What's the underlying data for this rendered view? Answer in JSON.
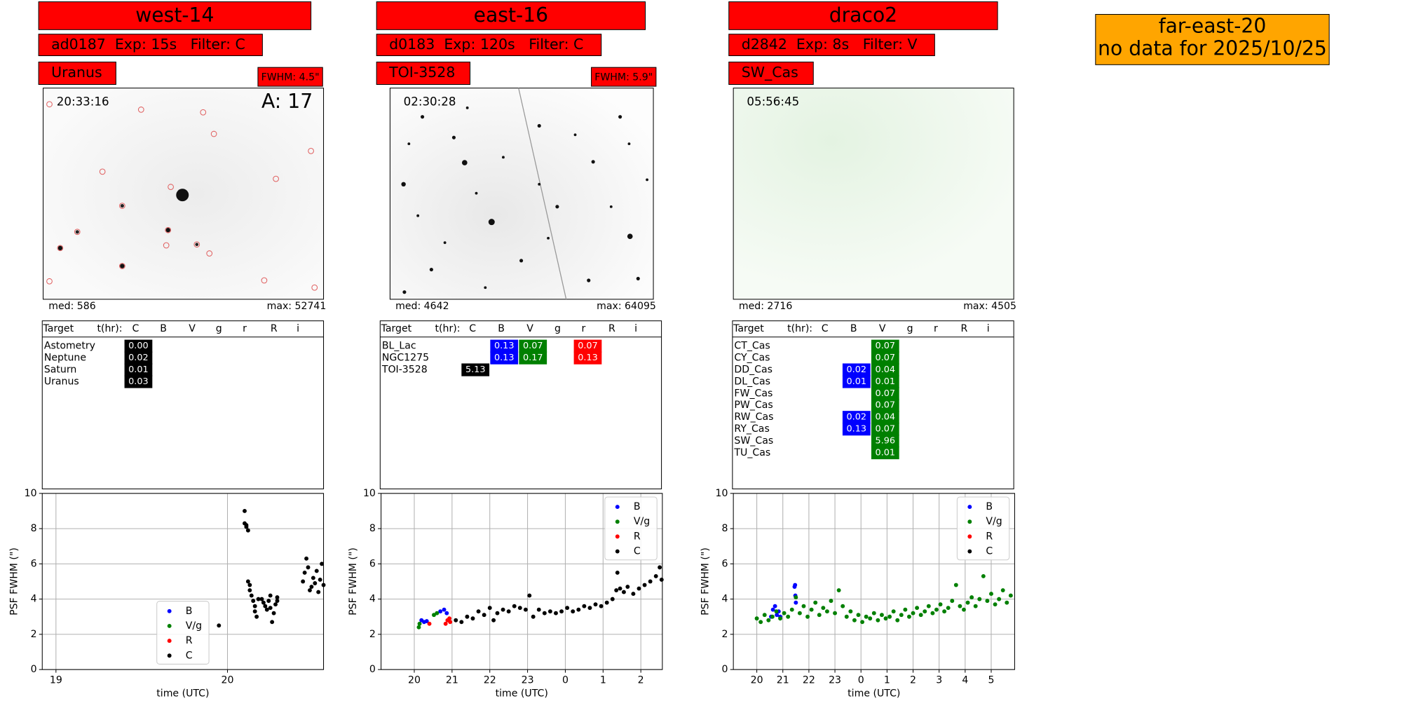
{
  "panels": [
    {
      "name": "west-14",
      "info": "ad0187  Exp: 15s   Filter: C",
      "target": "Uranus",
      "fwhm": "FWHM: 4.5\"",
      "image": {
        "time": "20:33:16",
        "annotation": "A: 17",
        "median": "med: 586",
        "max": "max: 52741"
      },
      "table": {
        "header": [
          "Target",
          "t(hr):",
          "C",
          "B",
          "V",
          "g",
          "r",
          "R",
          "i"
        ],
        "rows": [
          {
            "target": "Astometry",
            "cells": [
              {
                "filter": "C",
                "value": "0.00",
                "color": "#000000"
              }
            ]
          },
          {
            "target": "Neptune",
            "cells": [
              {
                "filter": "C",
                "value": "0.02",
                "color": "#000000"
              }
            ]
          },
          {
            "target": "Saturn",
            "cells": [
              {
                "filter": "C",
                "value": "0.01",
                "color": "#000000"
              }
            ]
          },
          {
            "target": "Uranus",
            "cells": [
              {
                "filter": "C",
                "value": "0.03",
                "color": "#000000"
              }
            ]
          }
        ]
      }
    },
    {
      "name": "east-16",
      "info": "d0183  Exp: 120s   Filter: C",
      "target": "TOI-3528",
      "fwhm": "FWHM: 5.9\"",
      "image": {
        "time": "02:30:28",
        "median": "med: 4642",
        "max": "max: 64095"
      },
      "table": {
        "header": [
          "Target",
          "t(hr):",
          "C",
          "B",
          "V",
          "g",
          "r",
          "R",
          "i"
        ],
        "rows": [
          {
            "target": "BL_Lac",
            "cells": [
              {
                "filter": "B",
                "value": "0.13",
                "color": "#0000ff"
              },
              {
                "filter": "V",
                "value": "0.07",
                "color": "#008000"
              },
              {
                "filter": "r",
                "value": "0.07",
                "color": "#ff0000"
              }
            ]
          },
          {
            "target": "NGC1275",
            "cells": [
              {
                "filter": "B",
                "value": "0.13",
                "color": "#0000ff"
              },
              {
                "filter": "V",
                "value": "0.17",
                "color": "#008000"
              },
              {
                "filter": "r",
                "value": "0.13",
                "color": "#ff0000"
              }
            ]
          },
          {
            "target": "TOI-3528",
            "cells": [
              {
                "filter": "C",
                "value": "5.13",
                "color": "#000000"
              }
            ]
          }
        ]
      }
    },
    {
      "name": "draco2",
      "info": "d2842  Exp: 8s   Filter: V",
      "target": "SW_Cas",
      "image": {
        "time": "05:56:45",
        "median": "med: 2716",
        "max": "max: 4505"
      },
      "table": {
        "header": [
          "Target",
          "t(hr):",
          "C",
          "B",
          "V",
          "g",
          "r",
          "R",
          "i"
        ],
        "rows": [
          {
            "target": "CT_Cas",
            "cells": [
              {
                "filter": "V",
                "value": "0.07",
                "color": "#008000"
              }
            ]
          },
          {
            "target": "CY_Cas",
            "cells": [
              {
                "filter": "V",
                "value": "0.07",
                "color": "#008000"
              }
            ]
          },
          {
            "target": "DD_Cas",
            "cells": [
              {
                "filter": "B",
                "value": "0.02",
                "color": "#0000ff"
              },
              {
                "filter": "V",
                "value": "0.04",
                "color": "#008000"
              }
            ]
          },
          {
            "target": "DL_Cas",
            "cells": [
              {
                "filter": "B",
                "value": "0.01",
                "color": "#0000ff"
              },
              {
                "filter": "V",
                "value": "0.01",
                "color": "#008000"
              }
            ]
          },
          {
            "target": "FW_Cas",
            "cells": [
              {
                "filter": "V",
                "value": "0.07",
                "color": "#008000"
              }
            ]
          },
          {
            "target": "PW_Cas",
            "cells": [
              {
                "filter": "V",
                "value": "0.07",
                "color": "#008000"
              }
            ]
          },
          {
            "target": "RW_Cas",
            "cells": [
              {
                "filter": "B",
                "value": "0.02",
                "color": "#0000ff"
              },
              {
                "filter": "V",
                "value": "0.04",
                "color": "#008000"
              }
            ]
          },
          {
            "target": "RY_Cas",
            "cells": [
              {
                "filter": "B",
                "value": "0.13",
                "color": "#0000ff"
              },
              {
                "filter": "V",
                "value": "0.07",
                "color": "#008000"
              }
            ]
          },
          {
            "target": "SW_Cas",
            "cells": [
              {
                "filter": "V",
                "value": "5.96",
                "color": "#008000"
              }
            ]
          },
          {
            "target": "TU_Cas",
            "cells": [
              {
                "filter": "V",
                "value": "0.01",
                "color": "#008000"
              }
            ]
          }
        ]
      }
    }
  ],
  "notice": {
    "lines": [
      "far-east-20",
      "no data for 2025/10/25"
    ]
  },
  "chart_data": [
    {
      "type": "scatter",
      "xlabel": "time (UTC)",
      "ylabel": "PSF FWHM (\")",
      "xlim": [
        18.92,
        20.56
      ],
      "ylim": [
        0,
        10
      ],
      "xticks": [
        19,
        20
      ],
      "yticks": [
        0,
        2,
        4,
        6,
        8,
        10
      ],
      "grid": true,
      "legend": "lower center",
      "series": [
        {
          "name": "B",
          "color": "#0000ff",
          "x": [],
          "values": []
        },
        {
          "name": "V/g",
          "color": "#008000",
          "x": [],
          "values": []
        },
        {
          "name": "R",
          "color": "#ff0000",
          "x": [],
          "values": []
        },
        {
          "name": "C",
          "color": "#000000",
          "x": [
            19.95,
            20.1,
            20.1,
            20.11,
            20.11,
            20.12,
            20.12,
            20.13,
            20.13,
            20.14,
            20.15,
            20.16,
            20.16,
            20.17,
            20.18,
            20.2,
            20.21,
            20.22,
            20.23,
            20.24,
            20.25,
            20.25,
            20.26,
            20.27,
            20.28,
            20.29,
            20.29,
            20.44,
            20.45,
            20.46,
            20.47,
            20.48,
            20.49,
            20.5,
            20.51,
            20.52,
            20.53,
            20.54,
            20.55,
            20.56
          ],
          "values": [
            2.5,
            9.0,
            8.3,
            8.2,
            8.1,
            7.9,
            5.0,
            4.8,
            4.5,
            4.2,
            3.9,
            3.6,
            3.3,
            3.0,
            4.0,
            4.0,
            3.8,
            3.6,
            3.4,
            3.9,
            4.2,
            3.5,
            2.7,
            3.2,
            3.7,
            4.1,
            3.9,
            5.0,
            5.5,
            6.3,
            5.8,
            4.5,
            4.7,
            5.2,
            4.9,
            5.6,
            4.4,
            5.1,
            6.0,
            4.8
          ]
        }
      ]
    },
    {
      "type": "scatter",
      "xlabel": "time (UTC)",
      "ylabel": "PSF FWHM (\")",
      "xlim": [
        19.12,
        26.57
      ],
      "ylim": [
        0,
        10
      ],
      "xticks": [
        20,
        21,
        22,
        23,
        {
          "value": 24,
          "label": "0"
        },
        {
          "value": 25,
          "label": "1"
        },
        {
          "value": 26,
          "label": "2"
        }
      ],
      "yticks": [
        0,
        2,
        4,
        6,
        8,
        10
      ],
      "grid": true,
      "legend": "upper right",
      "series": [
        {
          "name": "B",
          "color": "#0000ff",
          "x": [
            20.19,
            20.26,
            20.33,
            20.69,
            20.79,
            20.86
          ],
          "values": [
            2.8,
            2.7,
            2.75,
            3.3,
            3.4,
            3.2
          ]
        },
        {
          "name": "V/g",
          "color": "#008000",
          "x": [
            20.12,
            20.14,
            20.52,
            20.6
          ],
          "values": [
            2.4,
            2.6,
            3.1,
            3.2
          ]
        },
        {
          "name": "R",
          "color": "#ff0000",
          "x": [
            20.4,
            20.83,
            20.88,
            20.93,
            20.95
          ],
          "values": [
            2.6,
            2.6,
            2.8,
            2.9,
            2.7
          ]
        },
        {
          "name": "C",
          "color": "#000000",
          "x": [
            21.1,
            21.25,
            21.4,
            21.55,
            21.7,
            21.85,
            22.0,
            22.1,
            22.2,
            22.35,
            22.5,
            22.65,
            22.8,
            22.95,
            23.05,
            23.15,
            23.3,
            23.45,
            23.6,
            23.75,
            23.9,
            24.05,
            24.2,
            24.35,
            24.5,
            24.65,
            24.8,
            24.95,
            25.1,
            25.25,
            25.35,
            25.38,
            25.45,
            25.55,
            25.65,
            25.8,
            25.95,
            26.1,
            26.25,
            26.4,
            26.5,
            26.55
          ],
          "values": [
            2.8,
            2.7,
            3.0,
            2.9,
            3.3,
            3.1,
            3.5,
            2.8,
            3.2,
            3.4,
            3.3,
            3.6,
            3.5,
            3.4,
            4.2,
            3.0,
            3.4,
            3.2,
            3.3,
            3.2,
            3.3,
            3.5,
            3.3,
            3.4,
            3.6,
            3.5,
            3.7,
            3.6,
            3.8,
            4.0,
            4.5,
            5.5,
            4.6,
            4.4,
            4.7,
            4.3,
            4.6,
            4.8,
            5.0,
            5.3,
            5.8,
            5.1
          ]
        }
      ]
    },
    {
      "type": "scatter",
      "xlabel": "time (UTC)",
      "ylabel": "PSF FWHM (\")",
      "xlim": [
        19.1,
        29.9
      ],
      "ylim": [
        0,
        10
      ],
      "xticks": [
        20,
        21,
        22,
        23,
        {
          "value": 24,
          "label": "0"
        },
        {
          "value": 25,
          "label": "1"
        },
        {
          "value": 26,
          "label": "2"
        },
        {
          "value": 27,
          "label": "3"
        },
        {
          "value": 28,
          "label": "4"
        },
        {
          "value": 29,
          "label": "5"
        }
      ],
      "yticks": [
        0,
        2,
        4,
        6,
        8,
        10
      ],
      "grid": true,
      "legend": "upper right",
      "series": [
        {
          "name": "B",
          "color": "#0000ff",
          "x": [
            20.55,
            20.62,
            20.7,
            20.77,
            20.84,
            20.9,
            21.45,
            21.47,
            21.48,
            21.5
          ],
          "values": [
            3.0,
            3.4,
            3.6,
            3.1,
            3.3,
            3.0,
            4.7,
            4.8,
            4.2,
            3.8
          ]
        },
        {
          "name": "V/g",
          "color": "#008000",
          "x": [
            20.0,
            20.15,
            20.3,
            20.45,
            20.6,
            20.75,
            20.9,
            21.05,
            21.2,
            21.35,
            21.5,
            21.65,
            21.8,
            21.95,
            22.1,
            22.25,
            22.4,
            22.55,
            22.7,
            22.85,
            23.0,
            23.15,
            23.3,
            23.45,
            23.6,
            23.75,
            23.9,
            24.05,
            24.2,
            24.35,
            24.5,
            24.65,
            24.8,
            24.95,
            25.1,
            25.25,
            25.4,
            25.55,
            25.7,
            25.85,
            26.0,
            26.15,
            26.3,
            26.45,
            26.6,
            26.75,
            26.9,
            27.05,
            27.2,
            27.35,
            27.5,
            27.65,
            27.8,
            27.95,
            28.1,
            28.25,
            28.4,
            28.55,
            28.7,
            28.85,
            29.0,
            29.15,
            29.3,
            29.45,
            29.6,
            29.75
          ],
          "values": [
            2.9,
            2.7,
            3.1,
            2.8,
            3.0,
            3.3,
            2.9,
            3.2,
            3.0,
            3.4,
            4.1,
            3.2,
            3.6,
            3.0,
            3.4,
            3.8,
            3.1,
            3.5,
            3.3,
            3.9,
            3.2,
            4.5,
            3.6,
            3.0,
            3.3,
            2.8,
            3.1,
            2.7,
            3.0,
            2.9,
            3.2,
            2.8,
            3.1,
            2.9,
            3.0,
            3.3,
            2.8,
            3.1,
            3.4,
            3.0,
            3.2,
            3.5,
            3.1,
            3.3,
            3.6,
            3.2,
            3.4,
            3.7,
            3.3,
            3.5,
            3.9,
            4.8,
            3.6,
            3.4,
            3.8,
            4.1,
            3.6,
            4.0,
            5.3,
            3.9,
            4.3,
            3.7,
            4.0,
            4.5,
            3.8,
            4.2
          ]
        },
        {
          "name": "R",
          "color": "#ff0000",
          "x": [],
          "values": []
        },
        {
          "name": "C",
          "color": "#000000",
          "x": [],
          "values": []
        }
      ]
    }
  ]
}
